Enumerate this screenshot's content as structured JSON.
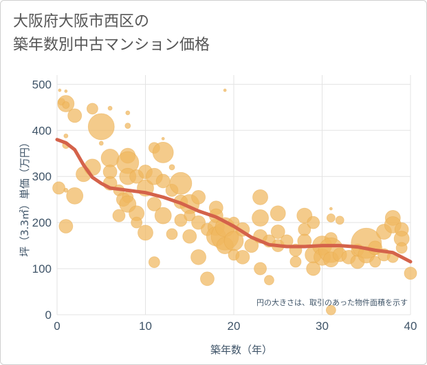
{
  "header": {
    "title_line1": "大阪府大阪市西区の",
    "title_line2": "築年数別中古マンション価格"
  },
  "colors": {
    "bubble": "#f0b75e",
    "bubble_stroke": "#e8a94a",
    "trend": "#d4624a",
    "grid": "#e3e3e3",
    "text": "#3f5468"
  },
  "chart_data": {
    "type": "scatter",
    "xlabel": "築年数（年）",
    "ylabel": "坪（3.3㎡）単価（万円）",
    "xlim": [
      0,
      40
    ],
    "ylim": [
      0,
      520
    ],
    "x_ticks": [
      0,
      10,
      20,
      30,
      40
    ],
    "y_ticks": [
      0,
      100,
      200,
      300,
      400,
      500
    ],
    "note": "円の大きさは、取引のあった物件面積を示す",
    "points": [
      {
        "x": 0.3,
        "y": 487,
        "s": 2
      },
      {
        "x": 0.5,
        "y": 462,
        "s": 5
      },
      {
        "x": 1,
        "y": 458,
        "s": 12
      },
      {
        "x": 1,
        "y": 455,
        "s": 5
      },
      {
        "x": 2,
        "y": 432,
        "s": 10
      },
      {
        "x": 1,
        "y": 485,
        "s": 2
      },
      {
        "x": 1,
        "y": 388,
        "s": 3
      },
      {
        "x": 1,
        "y": 368,
        "s": 5
      },
      {
        "x": 0.2,
        "y": 275,
        "s": 9
      },
      {
        "x": 1,
        "y": 270,
        "s": 3
      },
      {
        "x": 2,
        "y": 258,
        "s": 12
      },
      {
        "x": 1,
        "y": 192,
        "s": 10
      },
      {
        "x": 3,
        "y": 305,
        "s": 11
      },
      {
        "x": 4,
        "y": 320,
        "s": 12
      },
      {
        "x": 4,
        "y": 447,
        "s": 8
      },
      {
        "x": 5,
        "y": 408,
        "s": 19
      },
      {
        "x": 6,
        "y": 448,
        "s": 3
      },
      {
        "x": 5,
        "y": 372,
        "s": 3
      },
      {
        "x": 6,
        "y": 340,
        "s": 13
      },
      {
        "x": 6,
        "y": 310,
        "s": 10
      },
      {
        "x": 6,
        "y": 285,
        "s": 10
      },
      {
        "x": 7,
        "y": 270,
        "s": 8
      },
      {
        "x": 7,
        "y": 215,
        "s": 9
      },
      {
        "x": 7.5,
        "y": 250,
        "s": 10
      },
      {
        "x": 8,
        "y": 345,
        "s": 11
      },
      {
        "x": 8,
        "y": 330,
        "s": 16
      },
      {
        "x": 8,
        "y": 300,
        "s": 12
      },
      {
        "x": 8,
        "y": 255,
        "s": 8
      },
      {
        "x": 8,
        "y": 240,
        "s": 12
      },
      {
        "x": 8,
        "y": 410,
        "s": 4
      },
      {
        "x": 8,
        "y": 438,
        "s": 3
      },
      {
        "x": 9,
        "y": 300,
        "s": 10
      },
      {
        "x": 9,
        "y": 220,
        "s": 11
      },
      {
        "x": 9,
        "y": 200,
        "s": 8
      },
      {
        "x": 10,
        "y": 310,
        "s": 10
      },
      {
        "x": 10,
        "y": 275,
        "s": 12
      },
      {
        "x": 10,
        "y": 178,
        "s": 11
      },
      {
        "x": 11,
        "y": 300,
        "s": 12
      },
      {
        "x": 11,
        "y": 240,
        "s": 10
      },
      {
        "x": 11,
        "y": 114,
        "s": 8
      },
      {
        "x": 11,
        "y": 362,
        "s": 8
      },
      {
        "x": 12,
        "y": 352,
        "s": 15
      },
      {
        "x": 12,
        "y": 290,
        "s": 10
      },
      {
        "x": 12,
        "y": 215,
        "s": 12
      },
      {
        "x": 12,
        "y": 382,
        "s": 2
      },
      {
        "x": 13,
        "y": 320,
        "s": 4
      },
      {
        "x": 13,
        "y": 270,
        "s": 9
      },
      {
        "x": 13,
        "y": 175,
        "s": 8
      },
      {
        "x": 14,
        "y": 285,
        "s": 16
      },
      {
        "x": 14,
        "y": 245,
        "s": 10
      },
      {
        "x": 14,
        "y": 205,
        "s": 9
      },
      {
        "x": 15,
        "y": 240,
        "s": 14
      },
      {
        "x": 15,
        "y": 170,
        "s": 10
      },
      {
        "x": 15,
        "y": 215,
        "s": 8
      },
      {
        "x": 16,
        "y": 255,
        "s": 10
      },
      {
        "x": 16,
        "y": 200,
        "s": 10
      },
      {
        "x": 16,
        "y": 125,
        "s": 11
      },
      {
        "x": 17,
        "y": 185,
        "s": 9
      },
      {
        "x": 17,
        "y": 78,
        "s": 10
      },
      {
        "x": 18,
        "y": 232,
        "s": 10
      },
      {
        "x": 18,
        "y": 190,
        "s": 12
      },
      {
        "x": 18,
        "y": 170,
        "s": 14
      },
      {
        "x": 18,
        "y": 215,
        "s": 10
      },
      {
        "x": 19,
        "y": 170,
        "s": 20
      },
      {
        "x": 19,
        "y": 190,
        "s": 14
      },
      {
        "x": 19,
        "y": 150,
        "s": 12
      },
      {
        "x": 19,
        "y": 487,
        "s": 2
      },
      {
        "x": 20,
        "y": 160,
        "s": 14
      },
      {
        "x": 20,
        "y": 130,
        "s": 8
      },
      {
        "x": 20,
        "y": 200,
        "s": 8
      },
      {
        "x": 21,
        "y": 185,
        "s": 10
      },
      {
        "x": 21,
        "y": 125,
        "s": 10
      },
      {
        "x": 22,
        "y": 150,
        "s": 10
      },
      {
        "x": 23,
        "y": 255,
        "s": 11
      },
      {
        "x": 23,
        "y": 210,
        "s": 12
      },
      {
        "x": 23,
        "y": 170,
        "s": 10
      },
      {
        "x": 23,
        "y": 100,
        "s": 9
      },
      {
        "x": 24,
        "y": 75,
        "s": 7
      },
      {
        "x": 24,
        "y": 160,
        "s": 9
      },
      {
        "x": 25,
        "y": 220,
        "s": 11
      },
      {
        "x": 25,
        "y": 180,
        "s": 10
      },
      {
        "x": 25,
        "y": 150,
        "s": 9
      },
      {
        "x": 26,
        "y": 160,
        "s": 9
      },
      {
        "x": 27,
        "y": 140,
        "s": 9
      },
      {
        "x": 27,
        "y": 115,
        "s": 8
      },
      {
        "x": 28,
        "y": 215,
        "s": 11
      },
      {
        "x": 28,
        "y": 185,
        "s": 9
      },
      {
        "x": 28,
        "y": 160,
        "s": 10
      },
      {
        "x": 29,
        "y": 200,
        "s": 9
      },
      {
        "x": 29,
        "y": 130,
        "s": 12
      },
      {
        "x": 29,
        "y": 100,
        "s": 10
      },
      {
        "x": 30,
        "y": 150,
        "s": 14
      },
      {
        "x": 30,
        "y": 125,
        "s": 12
      },
      {
        "x": 31,
        "y": 165,
        "s": 9
      },
      {
        "x": 31,
        "y": 140,
        "s": 18
      },
      {
        "x": 31,
        "y": 120,
        "s": 11
      },
      {
        "x": 31,
        "y": 230,
        "s": 2
      },
      {
        "x": 31,
        "y": 210,
        "s": 6
      },
      {
        "x": 31,
        "y": 10,
        "s": 7
      },
      {
        "x": 32,
        "y": 205,
        "s": 6
      },
      {
        "x": 32,
        "y": 130,
        "s": 10
      },
      {
        "x": 33,
        "y": 125,
        "s": 10
      },
      {
        "x": 34,
        "y": 115,
        "s": 10
      },
      {
        "x": 34,
        "y": 140,
        "s": 9
      },
      {
        "x": 35,
        "y": 155,
        "s": 22
      },
      {
        "x": 35,
        "y": 130,
        "s": 12
      },
      {
        "x": 36,
        "y": 145,
        "s": 10
      },
      {
        "x": 36,
        "y": 115,
        "s": 8
      },
      {
        "x": 37,
        "y": 180,
        "s": 11
      },
      {
        "x": 37,
        "y": 130,
        "s": 9
      },
      {
        "x": 38,
        "y": 210,
        "s": 11
      },
      {
        "x": 38,
        "y": 195,
        "s": 12
      },
      {
        "x": 38,
        "y": 125,
        "s": 8
      },
      {
        "x": 39,
        "y": 185,
        "s": 10
      },
      {
        "x": 39,
        "y": 165,
        "s": 11
      },
      {
        "x": 39,
        "y": 145,
        "s": 8
      },
      {
        "x": 40,
        "y": 90,
        "s": 9
      }
    ],
    "trend": [
      {
        "x": 0,
        "y": 380
      },
      {
        "x": 1,
        "y": 373
      },
      {
        "x": 2,
        "y": 358
      },
      {
        "x": 3,
        "y": 325
      },
      {
        "x": 4,
        "y": 298
      },
      {
        "x": 5,
        "y": 285
      },
      {
        "x": 6,
        "y": 275
      },
      {
        "x": 8,
        "y": 270
      },
      {
        "x": 10,
        "y": 265
      },
      {
        "x": 12,
        "y": 255
      },
      {
        "x": 14,
        "y": 242
      },
      {
        "x": 16,
        "y": 225
      },
      {
        "x": 18,
        "y": 212
      },
      {
        "x": 20,
        "y": 192
      },
      {
        "x": 22,
        "y": 168
      },
      {
        "x": 24,
        "y": 152
      },
      {
        "x": 26,
        "y": 148
      },
      {
        "x": 28,
        "y": 148
      },
      {
        "x": 30,
        "y": 150
      },
      {
        "x": 32,
        "y": 150
      },
      {
        "x": 34,
        "y": 147
      },
      {
        "x": 36,
        "y": 140
      },
      {
        "x": 38,
        "y": 135
      },
      {
        "x": 40,
        "y": 115
      }
    ]
  }
}
